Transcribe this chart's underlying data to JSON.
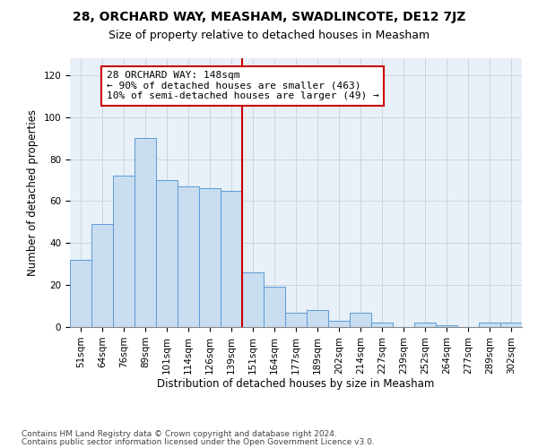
{
  "title": "28, ORCHARD WAY, MEASHAM, SWADLINCOTE, DE12 7JZ",
  "subtitle": "Size of property relative to detached houses in Measham",
  "xlabel": "Distribution of detached houses by size in Measham",
  "ylabel": "Number of detached properties",
  "footnote1": "Contains HM Land Registry data © Crown copyright and database right 2024.",
  "footnote2": "Contains public sector information licensed under the Open Government Licence v3.0.",
  "annotation_title": "28 ORCHARD WAY: 148sqm",
  "annotation_line1": "← 90% of detached houses are smaller (463)",
  "annotation_line2": "10% of semi-detached houses are larger (49) →",
  "bar_color": "#c8ddf0",
  "bar_edge_color": "#5b9bd5",
  "ref_line_color": "#cc0000",
  "annotation_box_color": "#cc0000",
  "categories": [
    "51sqm",
    "64sqm",
    "76sqm",
    "89sqm",
    "101sqm",
    "114sqm",
    "126sqm",
    "139sqm",
    "151sqm",
    "164sqm",
    "177sqm",
    "189sqm",
    "202sqm",
    "214sqm",
    "227sqm",
    "239sqm",
    "252sqm",
    "264sqm",
    "277sqm",
    "289sqm",
    "302sqm"
  ],
  "values": [
    32,
    49,
    72,
    90,
    70,
    67,
    66,
    65,
    26,
    19,
    7,
    8,
    3,
    7,
    2,
    0,
    2,
    1,
    0,
    2,
    2
  ],
  "ref_bar_index": 8,
  "ylim": [
    0,
    128
  ],
  "yticks": [
    0,
    20,
    40,
    60,
    80,
    100,
    120
  ],
  "background_color": "#ffffff",
  "plot_bg_color": "#e8f0f8",
  "grid_color": "#c8d0d8",
  "title_fontsize": 10,
  "subtitle_fontsize": 9,
  "axis_label_fontsize": 8.5,
  "tick_fontsize": 7.5,
  "annotation_fontsize": 8,
  "footnote_fontsize": 6.5
}
